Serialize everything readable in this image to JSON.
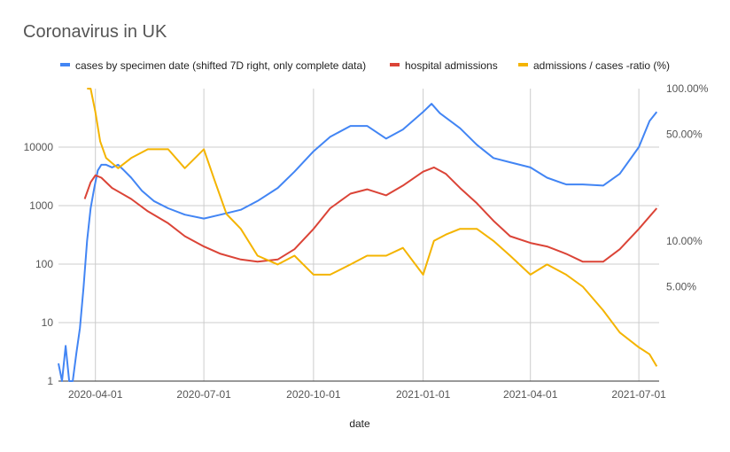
{
  "chart_data": {
    "type": "line",
    "title": "Coronavirus in UK",
    "xlabel": "date",
    "ylabel": "",
    "y2label": "",
    "yscale": "log",
    "ylim": [
      1,
      100000
    ],
    "y2scale": "log",
    "y2lim": [
      1.2,
      100
    ],
    "xlim": [
      "2020-03-01",
      "2021-07-18"
    ],
    "grid": true,
    "legend_position": "top",
    "x_ticks": [
      "2020-04-01",
      "2020-07-01",
      "2020-10-01",
      "2021-01-01",
      "2021-04-01",
      "2021-07-01"
    ],
    "y_ticks": [
      1,
      10,
      100,
      1000,
      10000
    ],
    "y_tick_labels": [
      "1",
      "10",
      "100",
      "1000",
      "10000"
    ],
    "y2_ticks": [
      5,
      10,
      50,
      100
    ],
    "y2_tick_labels": [
      "5.00%",
      "10.00%",
      "50.00%",
      "100.00%"
    ],
    "series": [
      {
        "name": "cases by specimen date (shifted 7D right, only complete data)",
        "color": "#4285f4",
        "axis": "left",
        "x": [
          "2020-03-01",
          "2020-03-04",
          "2020-03-07",
          "2020-03-10",
          "2020-03-13",
          "2020-03-16",
          "2020-03-19",
          "2020-03-22",
          "2020-03-25",
          "2020-03-28",
          "2020-03-31",
          "2020-04-03",
          "2020-04-06",
          "2020-04-10",
          "2020-04-15",
          "2020-04-20",
          "2020-04-25",
          "2020-05-01",
          "2020-05-10",
          "2020-05-20",
          "2020-06-01",
          "2020-06-15",
          "2020-07-01",
          "2020-07-15",
          "2020-08-01",
          "2020-08-15",
          "2020-09-01",
          "2020-09-15",
          "2020-10-01",
          "2020-10-15",
          "2020-11-01",
          "2020-11-15",
          "2020-12-01",
          "2020-12-15",
          "2021-01-01",
          "2021-01-08",
          "2021-01-15",
          "2021-02-01",
          "2021-02-15",
          "2021-03-01",
          "2021-03-15",
          "2021-04-01",
          "2021-04-15",
          "2021-05-01",
          "2021-05-15",
          "2021-06-01",
          "2021-06-15",
          "2021-07-01",
          "2021-07-10",
          "2021-07-16"
        ],
        "values": [
          2,
          1,
          4,
          1,
          1,
          3,
          8,
          40,
          250,
          900,
          2000,
          4000,
          5000,
          5000,
          4500,
          5000,
          4000,
          3000,
          1800,
          1200,
          900,
          700,
          600,
          700,
          850,
          1200,
          2000,
          3800,
          8500,
          15000,
          23000,
          23000,
          14000,
          20000,
          40000,
          55000,
          38000,
          21000,
          11000,
          6500,
          5500,
          4500,
          3000,
          2300,
          2300,
          2200,
          3500,
          10000,
          28000,
          40000
        ]
      },
      {
        "name": "hospital admissions",
        "color": "#db4437",
        "axis": "left",
        "x": [
          "2020-03-23",
          "2020-03-28",
          "2020-04-01",
          "2020-04-06",
          "2020-04-15",
          "2020-05-01",
          "2020-05-15",
          "2020-06-01",
          "2020-06-15",
          "2020-07-01",
          "2020-07-15",
          "2020-08-01",
          "2020-08-15",
          "2020-09-01",
          "2020-09-15",
          "2020-10-01",
          "2020-10-15",
          "2020-11-01",
          "2020-11-15",
          "2020-12-01",
          "2020-12-15",
          "2021-01-01",
          "2021-01-10",
          "2021-01-20",
          "2021-02-01",
          "2021-02-15",
          "2021-03-01",
          "2021-03-15",
          "2021-04-01",
          "2021-04-15",
          "2021-05-01",
          "2021-05-15",
          "2021-06-01",
          "2021-06-15",
          "2021-07-01",
          "2021-07-10",
          "2021-07-16"
        ],
        "values": [
          1300,
          2500,
          3300,
          3000,
          2000,
          1300,
          800,
          500,
          300,
          200,
          150,
          120,
          110,
          120,
          180,
          400,
          900,
          1600,
          1900,
          1500,
          2200,
          3800,
          4500,
          3500,
          2000,
          1100,
          550,
          300,
          230,
          200,
          150,
          110,
          110,
          180,
          400,
          650,
          900
        ]
      },
      {
        "name": "admissions / cases -ratio (%)",
        "color": "#f4b400",
        "axis": "right",
        "x": [
          "2020-03-25",
          "2020-03-28",
          "2020-04-01",
          "2020-04-05",
          "2020-04-10",
          "2020-04-20",
          "2020-05-01",
          "2020-05-15",
          "2020-06-01",
          "2020-06-15",
          "2020-07-01",
          "2020-07-10",
          "2020-07-20",
          "2020-08-01",
          "2020-08-15",
          "2020-09-01",
          "2020-09-15",
          "2020-10-01",
          "2020-10-15",
          "2020-11-01",
          "2020-11-15",
          "2020-12-01",
          "2020-12-15",
          "2021-01-01",
          "2021-01-10",
          "2021-01-20",
          "2021-02-01",
          "2021-02-15",
          "2021-03-01",
          "2021-03-15",
          "2021-04-01",
          "2021-04-15",
          "2021-05-01",
          "2021-05-15",
          "2021-06-01",
          "2021-06-15",
          "2021-07-01",
          "2021-07-10",
          "2021-07-16"
        ],
        "values": [
          100,
          100,
          70,
          45,
          35,
          30,
          35,
          40,
          40,
          30,
          40,
          25,
          15,
          12,
          8,
          7,
          8,
          6,
          6,
          7,
          8,
          8,
          9,
          6,
          10,
          11,
          12,
          12,
          10,
          8,
          6,
          7,
          6,
          5,
          3.5,
          2.5,
          2,
          1.8,
          1.5
        ]
      }
    ]
  }
}
